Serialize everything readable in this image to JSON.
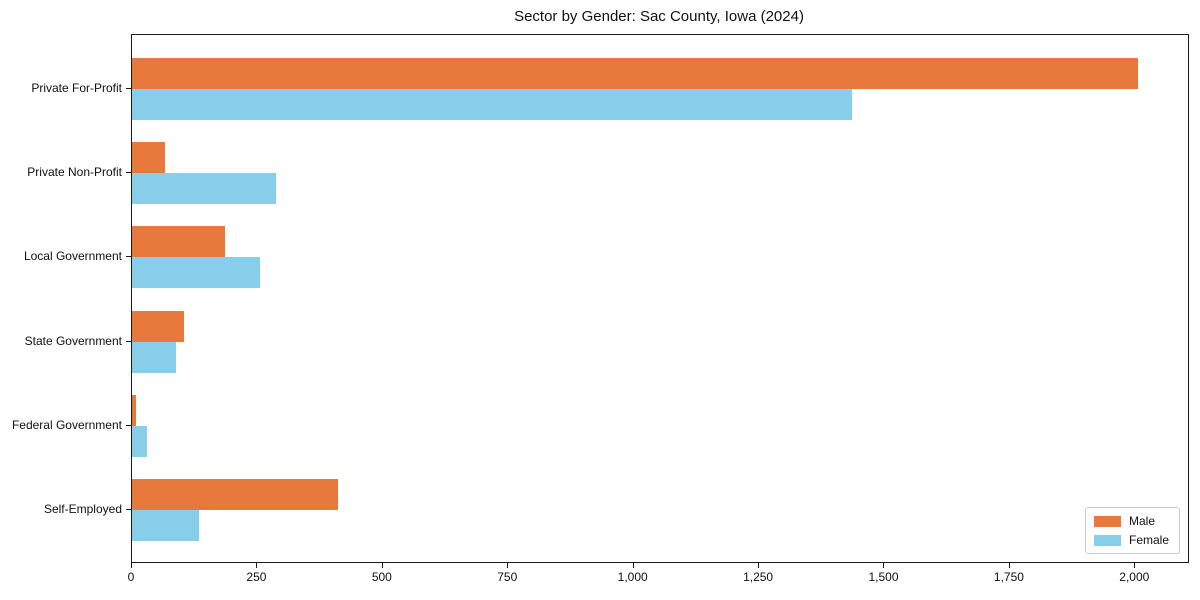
{
  "title": "Sector by Gender: Sac County, Iowa (2024)",
  "colors": {
    "male": "#e8793c",
    "female": "#87ceeb",
    "axis": "#1a1a1a",
    "legend_border": "#cccccc",
    "background": "#ffffff"
  },
  "chart_data": {
    "type": "bar",
    "orientation": "horizontal",
    "title": "Sector by Gender: Sac County, Iowa (2024)",
    "xlabel": "",
    "ylabel": "",
    "categories": [
      "Private For-Profit",
      "Private Non-Profit",
      "Local Government",
      "State Government",
      "Federal Government",
      "Self-Employed"
    ],
    "series": [
      {
        "name": "Male",
        "color": "#e8793c",
        "values": [
          2005,
          66,
          185,
          103,
          7,
          410
        ]
      },
      {
        "name": "Female",
        "color": "#87ceeb",
        "values": [
          1435,
          288,
          255,
          87,
          29,
          134
        ]
      }
    ],
    "xlim": [
      0,
      2105
    ],
    "xticks": [
      0,
      250,
      500,
      750,
      1000,
      1250,
      1500,
      1750,
      2000
    ],
    "xtick_labels": [
      "0",
      "250",
      "500",
      "750",
      "1,000",
      "1,250",
      "1,500",
      "1,750",
      "2,000"
    ],
    "grid": false,
    "legend": {
      "position": "lower right",
      "entries": [
        "Male",
        "Female"
      ]
    }
  }
}
